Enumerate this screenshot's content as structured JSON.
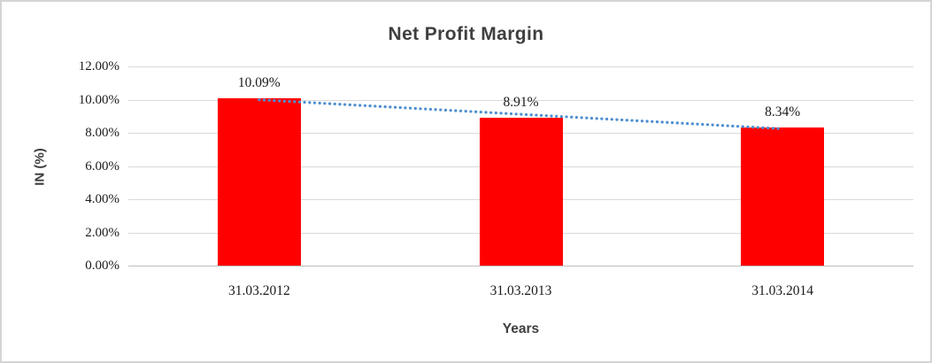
{
  "chart_data": {
    "type": "bar",
    "title": "Net Profit Margin",
    "xlabel": "Years",
    "ylabel": "IN (%)",
    "categories": [
      "31.03.2012",
      "31.03.2013",
      "31.03.2014"
    ],
    "values": [
      10.09,
      8.91,
      8.34
    ],
    "value_labels": [
      "10.09%",
      "8.91%",
      "8.34%"
    ],
    "ytick_labels": [
      "12.00%",
      "10.00%",
      "8.00%",
      "6.00%",
      "4.00%",
      "2.00%",
      "0.00%"
    ],
    "ylim": [
      0,
      12
    ],
    "grid": true,
    "legend_position": "none",
    "bar_color": "#ff0000",
    "gridline_color": "#d9d9d9",
    "trendline": {
      "type": "linear",
      "style": "dotted",
      "color": "#4e8fd0",
      "start_value": 9.99,
      "end_value": 8.24
    }
  }
}
